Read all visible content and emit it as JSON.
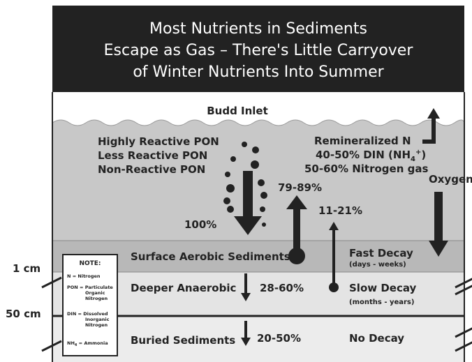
{
  "header": {
    "title_lines": [
      "Most Nutrients in Sediments",
      "Escape as Gas – There's Little Carryover",
      "of Winter Nutrients Into Summer"
    ]
  },
  "water": {
    "label": "Budd Inlet",
    "pon_labels": [
      "Highly Reactive PON",
      "Less Reactive PON",
      "Non-Reactive PON"
    ],
    "remineralized": {
      "title": "Remineralized N",
      "din_parts": [
        "40-50% DIN (NH",
        "4",
        "+",
        ")"
      ],
      "gas": "50-60% Nitrogen gas"
    },
    "oxygen": "Oxygen",
    "pct_up_large": "79-89%",
    "pct_up_small": "11-21%",
    "pct_down": "100%"
  },
  "layers": [
    {
      "name": "Surface Aerobic Sediments",
      "decay": "Fast Decay",
      "period": "(days - weeks)"
    },
    {
      "name": "Deeper Anaerobic",
      "pct": "28-60%",
      "decay": "Slow Decay",
      "period": "(months - years)"
    },
    {
      "name": "Buried Sediments",
      "pct": "20-50%",
      "decay": "No Decay"
    }
  ],
  "depths": [
    "1 cm",
    "50 cm"
  ],
  "note": {
    "title": "NOTE:",
    "lines": [
      "N = Nitrogen",
      "PON = Particulate",
      "Organic",
      "Nitrogen",
      "DIN = Dissolved",
      "Inorganic",
      "Nitrogen"
    ],
    "nh4": [
      "NH",
      "4",
      " = Ammonia"
    ]
  }
}
